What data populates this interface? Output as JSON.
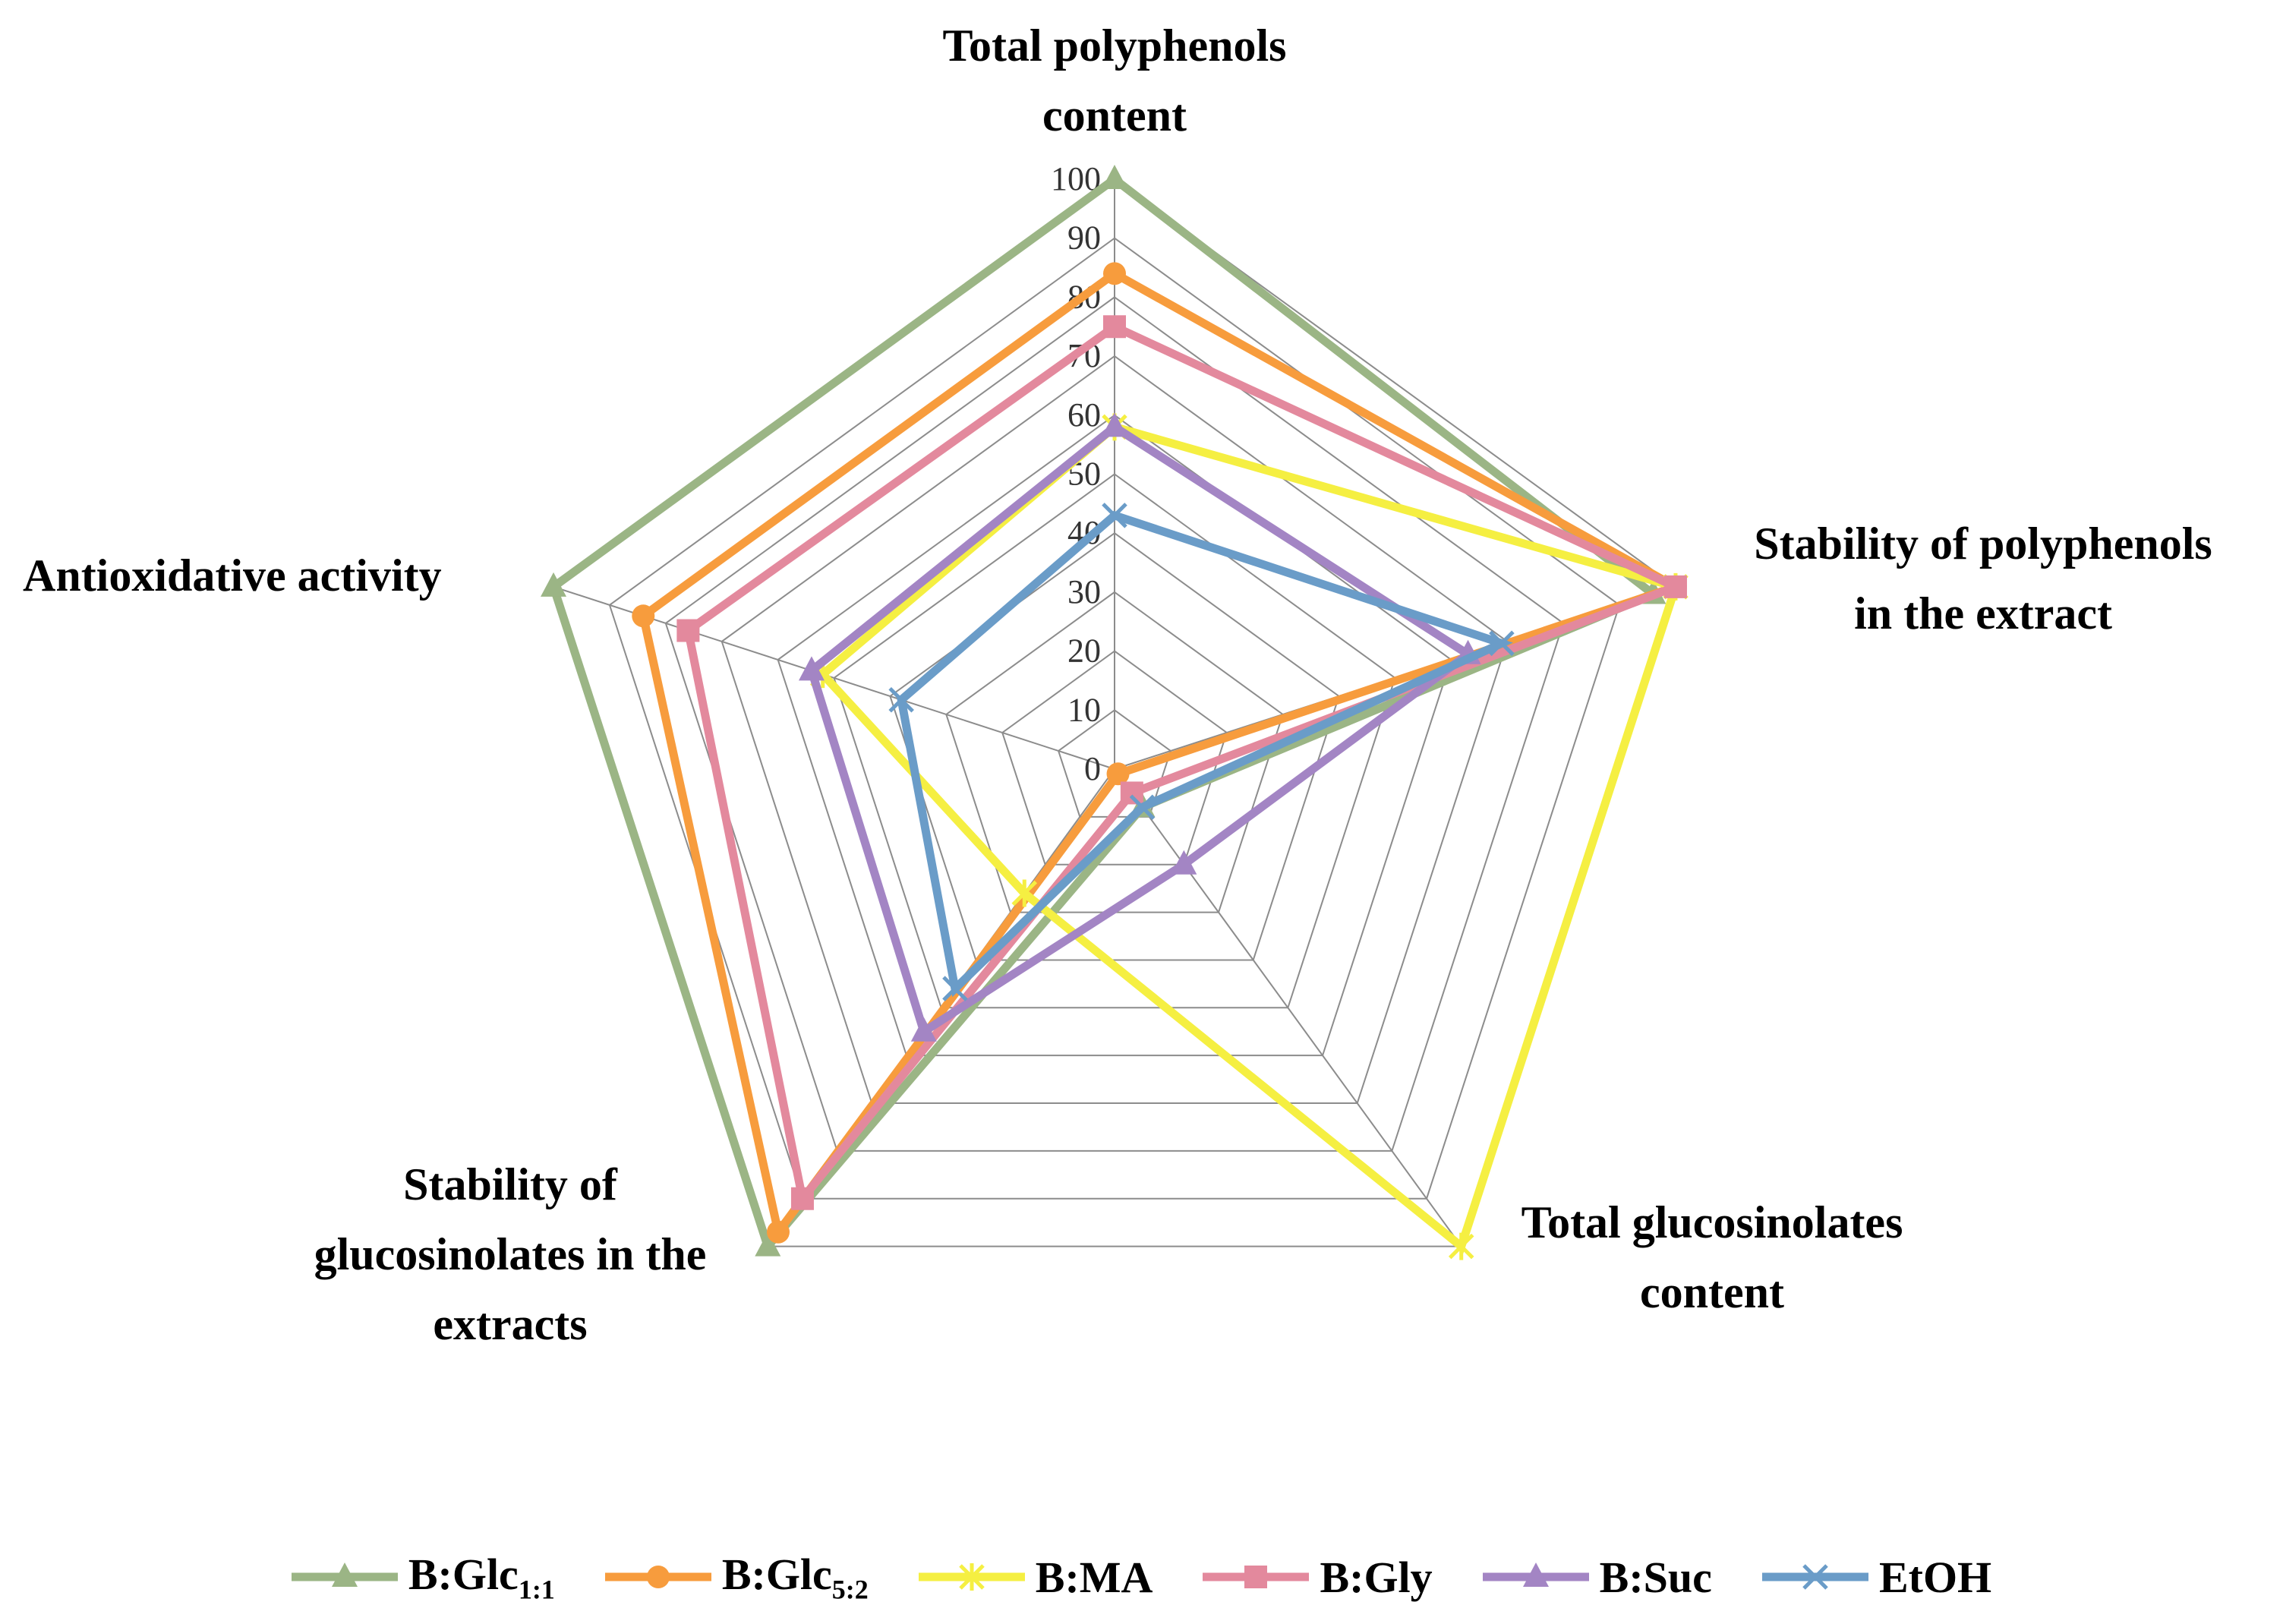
{
  "chart_data": {
    "type": "radar",
    "axes": [
      [
        "Total polyphenols",
        "content"
      ],
      [
        "Stability of polyphenols",
        "in the extract"
      ],
      [
        "Total glucosinolates",
        "content"
      ],
      [
        "Stability of",
        "glucosinolates in the",
        "extracts"
      ],
      [
        "Antioxidative activity"
      ]
    ],
    "rlim": [
      0,
      100
    ],
    "ticks": [
      "0",
      "10",
      "20",
      "30",
      "40",
      "50",
      "60",
      "70",
      "80",
      "90",
      "100"
    ],
    "grid": true,
    "legend_position": "bottom",
    "series": [
      {
        "name": "B:Glc",
        "subscript": "1:1",
        "color": "#9bb585",
        "marker": "triangle",
        "values": [
          100,
          96,
          8,
          100,
          100
        ]
      },
      {
        "name": "B:Glc",
        "subscript": "5:2",
        "color": "#f79c3d",
        "marker": "circle",
        "values": [
          84,
          100,
          1,
          97,
          84
        ]
      },
      {
        "name": "B:MA",
        "subscript": "",
        "color": "#f5ef42",
        "marker": "star",
        "values": [
          58,
          100,
          100,
          26,
          52
        ]
      },
      {
        "name": "B:Gly",
        "subscript": "",
        "color": "#e3899d",
        "marker": "square",
        "values": [
          75,
          100,
          5,
          90,
          76
        ]
      },
      {
        "name": "B:Suc",
        "subscript": "",
        "color": "#a385c4",
        "marker": "triangle",
        "values": [
          58,
          63,
          20,
          55,
          54
        ]
      },
      {
        "name": "EtOH",
        "subscript": "",
        "color": "#6a9cc8",
        "marker": "x",
        "values": [
          43,
          69,
          8,
          46,
          38
        ]
      }
    ]
  }
}
